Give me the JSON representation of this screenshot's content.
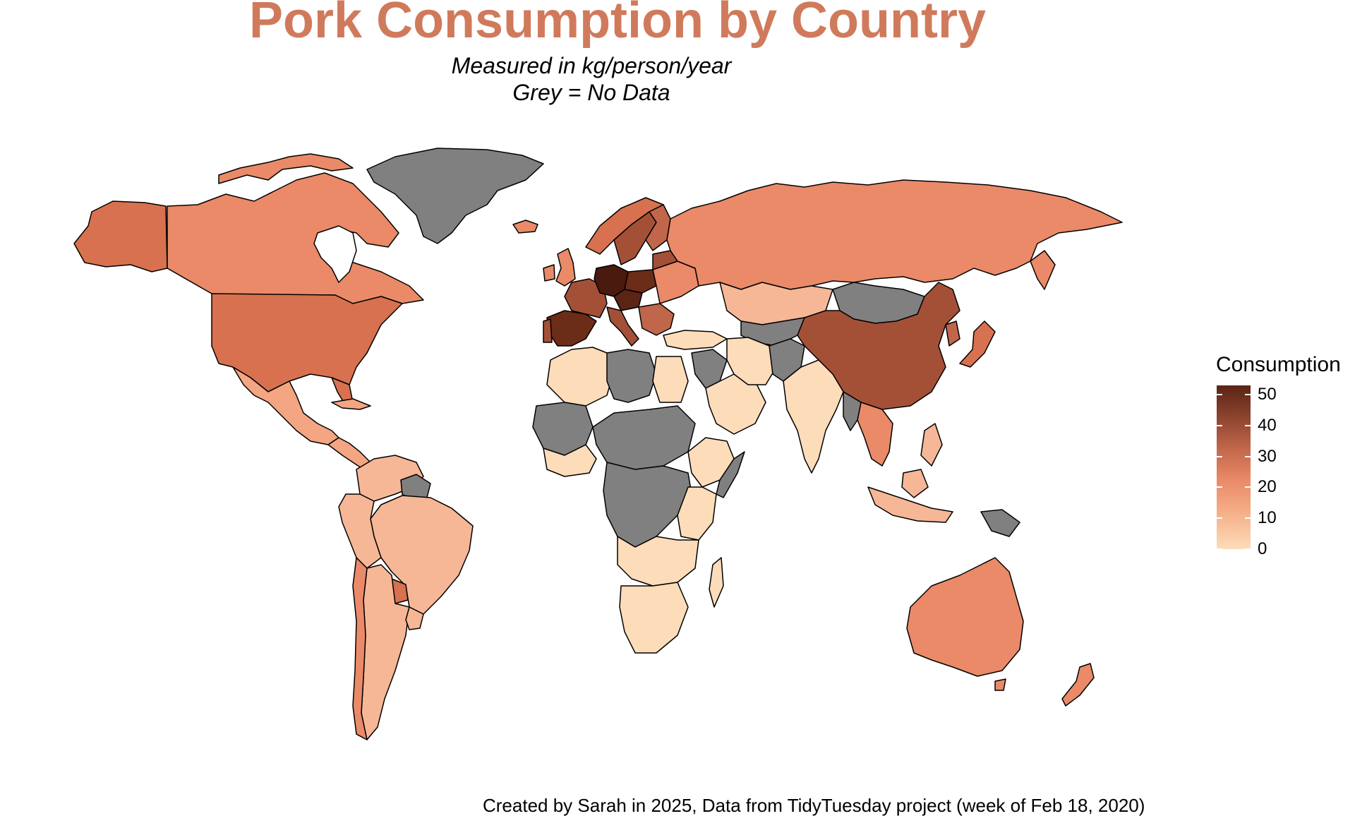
{
  "title": "Pork Consumption by Country",
  "subtitle": [
    "Measured in kg/person/year",
    "Grey = No Data"
  ],
  "legend": {
    "title": "Consumption",
    "ticks": [
      "50",
      "40",
      "30",
      "20",
      "10",
      "0"
    ],
    "scale_min": 0,
    "scale_max": 53
  },
  "caption": "Created by Sarah in 2025, Data from TidyTuesday project (week of Feb 18, 2020)",
  "colors": {
    "no_data": "#808080",
    "very_low": "#fddcba",
    "low": "#f6b796",
    "mid_low": "#f4a582",
    "mid": "#ea8a68",
    "mid_high": "#d8714f",
    "high": "#a45037",
    "very_high": "#6b2c18",
    "max": "#4a1a0e",
    "border": "#000000",
    "title": "#d07a5c"
  }
}
